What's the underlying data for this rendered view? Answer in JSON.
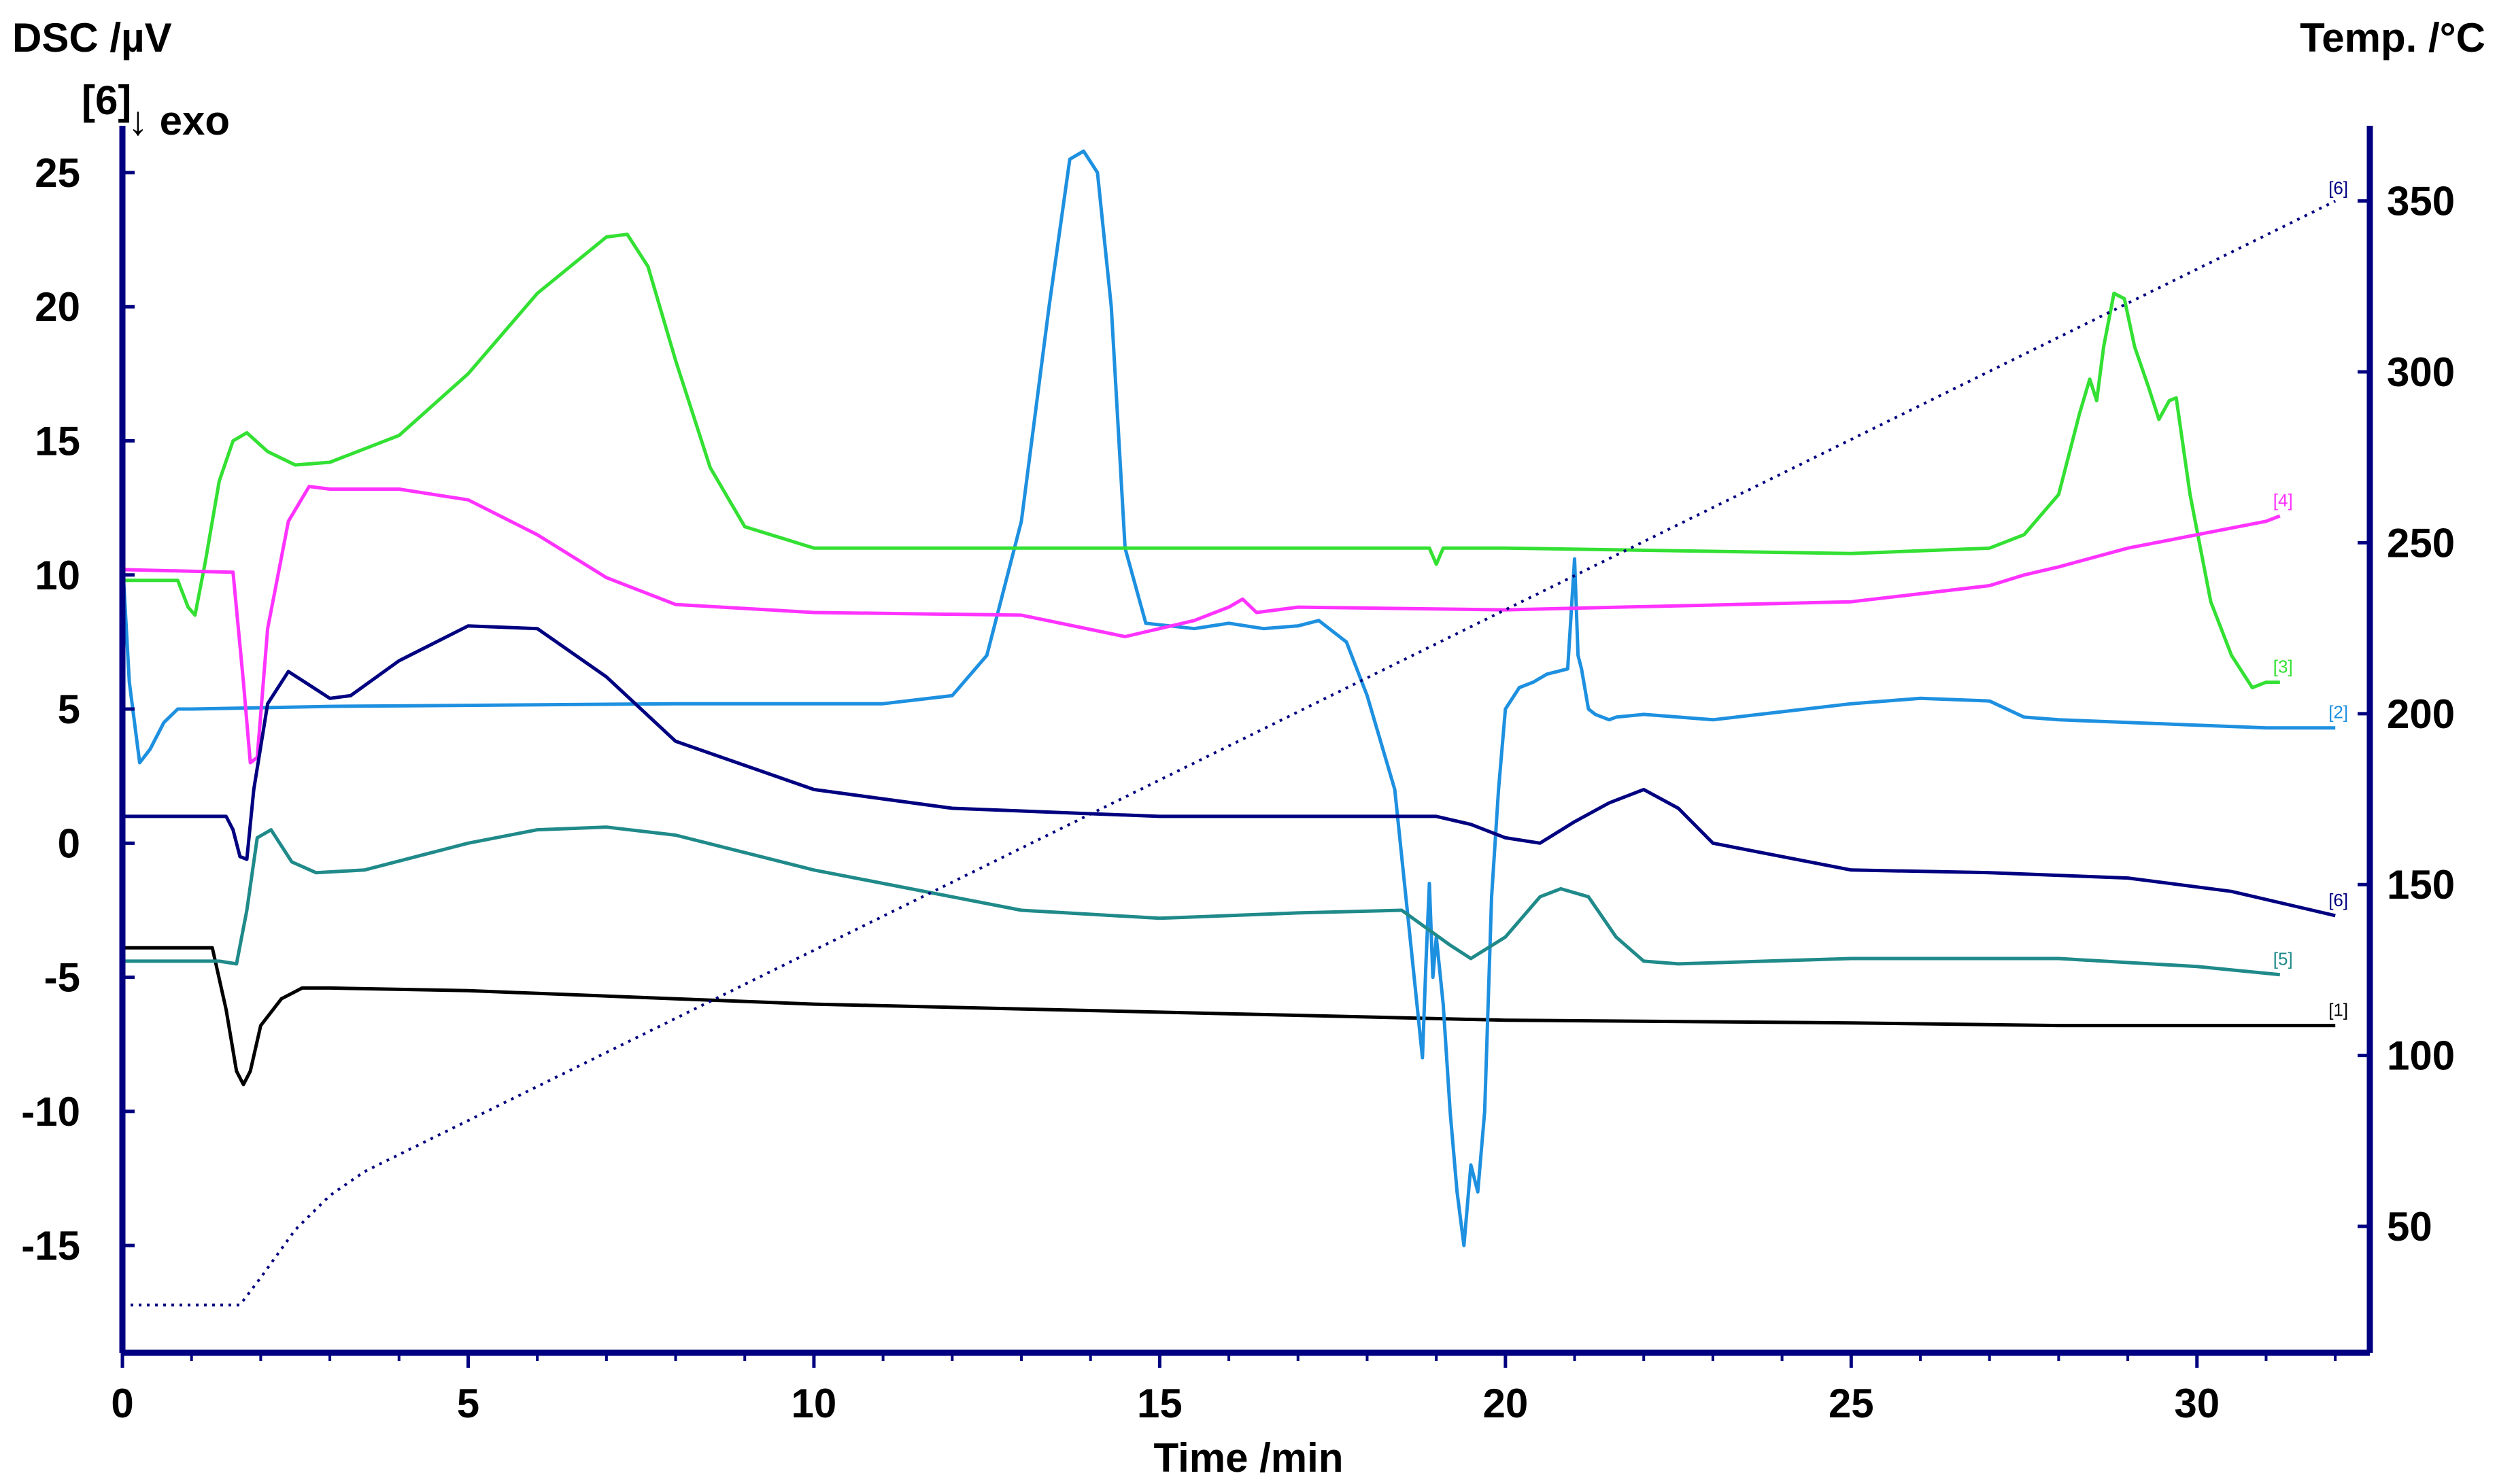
{
  "chart_data": {
    "type": "line",
    "left_axis_title": "DSC /µV",
    "right_axis_title": "Temp. /°C",
    "xlabel": "Time /min",
    "exo_marker": "[6]",
    "exo_label": "↓ exo",
    "xlim": [
      0,
      32.5
    ],
    "ylim": [
      -19,
      27
    ],
    "y2lim": [
      13,
      374
    ],
    "x_ticks": [
      "0",
      "5",
      "10",
      "15",
      "20",
      "25",
      "30"
    ],
    "y_ticks": [
      "25",
      "20",
      "15",
      "10",
      "5",
      "0",
      "-5",
      "-10",
      "-15"
    ],
    "y2_ticks": [
      "350",
      "300",
      "250",
      "200",
      "150",
      "100",
      "50"
    ],
    "grid": false,
    "colors": {
      "axes": "#000080",
      "s1": "#000000",
      "s2": "#1E90E0",
      "s3": "#33E033",
      "s4": "#FF33FF",
      "s5": "#208A8A",
      "s6": "#000080",
      "temp": "#000080"
    },
    "series": [
      {
        "name": "[1]",
        "color_key": "s1",
        "x": [
          0,
          1.3,
          1.5,
          1.65,
          1.75,
          1.85,
          2.0,
          2.3,
          2.6,
          3,
          5,
          8,
          10,
          15,
          20,
          25,
          28,
          30,
          32
        ],
        "y": [
          -3.9,
          -3.9,
          -6.2,
          -8.5,
          -9.0,
          -8.5,
          -6.8,
          -5.8,
          -5.4,
          -5.4,
          -5.5,
          -5.8,
          -6.0,
          -6.3,
          -6.6,
          -6.7,
          -6.8,
          -6.8,
          -6.8
        ]
      },
      {
        "name": "[2]",
        "color_key": "s2",
        "x": [
          0,
          0.1,
          0.25,
          0.4,
          0.6,
          0.8,
          1,
          3,
          8,
          11,
          12,
          12.5,
          13,
          13.4,
          13.7,
          13.9,
          14.1,
          14.3,
          14.5,
          14.8,
          15.5,
          16,
          16.5,
          17,
          17.3,
          17.7,
          18,
          18.4,
          18.6,
          18.8,
          18.85,
          18.9,
          18.95,
          19.0,
          19.1,
          19.2,
          19.3,
          19.4,
          19.5,
          19.6,
          19.7,
          19.8,
          19.9,
          20.0,
          20.2,
          20.4,
          20.6,
          20.9,
          21.0,
          21.05,
          21.1,
          21.2,
          21.3,
          21.5,
          21.6,
          22,
          23,
          24,
          25,
          26,
          27,
          27.5,
          28,
          29,
          30,
          31,
          32
        ],
        "y": [
          10.6,
          6,
          3,
          3.5,
          4.5,
          5,
          5,
          5.1,
          5.2,
          5.2,
          5.5,
          7,
          12,
          20,
          25.5,
          25.8,
          25,
          20,
          11,
          8.2,
          8,
          8.2,
          8.0,
          8.1,
          8.3,
          7.5,
          5.5,
          2,
          -3,
          -8,
          -4.5,
          -1.5,
          -5,
          -3.5,
          -6,
          -10,
          -13,
          -15,
          -12,
          -13,
          -10,
          -2,
          2,
          5,
          5.8,
          6,
          6.3,
          6.5,
          10.6,
          7,
          6.5,
          5.0,
          4.8,
          4.6,
          4.7,
          4.8,
          4.6,
          4.9,
          5.2,
          5.4,
          5.3,
          4.7,
          4.6,
          4.5,
          4.4,
          4.3,
          4.3
        ]
      },
      {
        "name": "[3]",
        "color_key": "s3",
        "x": [
          0,
          0.8,
          0.95,
          1.05,
          1.2,
          1.4,
          1.6,
          1.8,
          2.1,
          2.5,
          3,
          4,
          5,
          6,
          7,
          7.3,
          7.6,
          8,
          8.5,
          9,
          10,
          12,
          15,
          18,
          18.9,
          19.0,
          19.1,
          20,
          25,
          27,
          27.5,
          28,
          28.3,
          28.45,
          28.55,
          28.65,
          28.8,
          28.95,
          29.1,
          29.3,
          29.45,
          29.6,
          29.7,
          29.9,
          30.2,
          30.5,
          30.8,
          31.0,
          31.2
        ],
        "y": [
          9.8,
          9.8,
          8.8,
          8.5,
          10.5,
          13.5,
          15.0,
          15.3,
          14.6,
          14.1,
          14.2,
          15.2,
          17.5,
          20.5,
          22.6,
          22.7,
          21.5,
          18,
          14,
          11.8,
          11.0,
          11.0,
          11.0,
          11.0,
          11.0,
          10.4,
          11.0,
          11.0,
          10.8,
          11.0,
          11.5,
          13,
          16,
          17.3,
          16.5,
          18.5,
          20.5,
          20.3,
          18.5,
          17,
          15.8,
          16.5,
          16.6,
          13,
          9,
          7,
          5.8,
          6.0,
          6.0
        ]
      },
      {
        "name": "[4]",
        "color_key": "s4",
        "x": [
          0,
          1.6,
          1.75,
          1.85,
          1.95,
          2.1,
          2.4,
          2.7,
          3,
          4,
          5,
          6,
          7,
          8,
          10,
          13,
          14.5,
          15.5,
          16.0,
          16.2,
          16.4,
          17,
          20,
          25,
          27,
          27.5,
          28,
          29,
          30,
          31,
          31.2
        ],
        "y": [
          10.2,
          10.1,
          6,
          3.0,
          3.2,
          8,
          12,
          13.3,
          13.2,
          13.2,
          12.8,
          11.5,
          9.9,
          8.9,
          8.6,
          8.5,
          7.7,
          8.3,
          8.8,
          9.1,
          8.6,
          8.8,
          8.7,
          9.0,
          9.6,
          10.0,
          10.3,
          11.0,
          11.5,
          12.0,
          12.2
        ]
      },
      {
        "name": "[5]",
        "color_key": "s5",
        "x": [
          0,
          1.4,
          1.65,
          1.8,
          1.95,
          2.15,
          2.45,
          2.8,
          3.5,
          5,
          6,
          7,
          8,
          10,
          13,
          15,
          17,
          18.5,
          19.2,
          19.5,
          20,
          20.5,
          20.8,
          21.2,
          21.6,
          22,
          22.5,
          25,
          28,
          30,
          31.2
        ],
        "y": [
          -4.4,
          -4.4,
          -4.5,
          -2.5,
          0.2,
          0.5,
          -0.7,
          -1.1,
          -1.0,
          0.0,
          0.5,
          0.6,
          0.3,
          -1.0,
          -2.5,
          -2.8,
          -2.6,
          -2.5,
          -3.8,
          -4.3,
          -3.5,
          -2.0,
          -1.7,
          -2.0,
          -3.5,
          -4.4,
          -4.5,
          -4.3,
          -4.3,
          -4.6,
          -4.9
        ]
      },
      {
        "name": "[6]",
        "color_key": "s6",
        "x": [
          0,
          1.5,
          1.6,
          1.7,
          1.8,
          1.9,
          2.1,
          2.4,
          2.7,
          3,
          3.3,
          4,
          5,
          6,
          7,
          8,
          10,
          12,
          15,
          18,
          19,
          19.5,
          20,
          20.5,
          21,
          21.5,
          22,
          22.5,
          23,
          25,
          27,
          29,
          30.5,
          31.5,
          32
        ],
        "y": [
          1,
          1,
          0.5,
          -0.5,
          -0.6,
          2,
          5.2,
          6.4,
          5.9,
          5.4,
          5.5,
          6.8,
          8.1,
          8.0,
          6.2,
          3.8,
          2,
          1.3,
          1.0,
          1.0,
          1.0,
          0.7,
          0.2,
          0.0,
          0.8,
          1.5,
          2.0,
          1.3,
          0.0,
          -1.0,
          -1.1,
          -1.3,
          -1.8,
          -2.4,
          -2.7
        ]
      }
    ],
    "temperature": {
      "name": "[6]",
      "x": [
        0,
        1.7,
        2.0,
        2.5,
        3.0,
        3.5,
        32
      ],
      "y": [
        27,
        27,
        35,
        49,
        59,
        66,
        350
      ]
    }
  }
}
